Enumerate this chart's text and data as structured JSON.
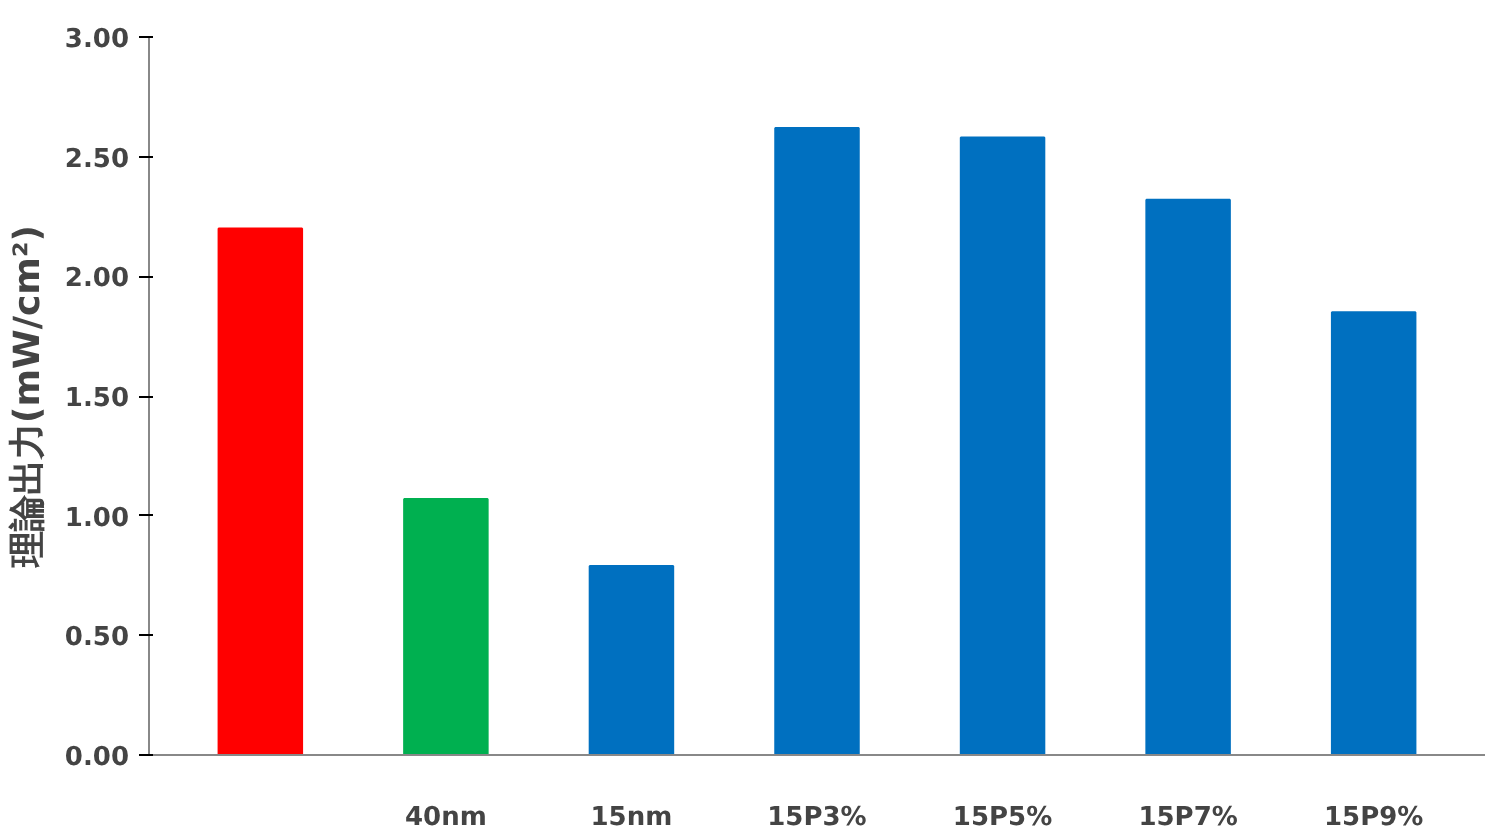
{
  "chart_data": {
    "type": "bar",
    "ylabel": "理論出力(mW/cm²)",
    "categories": [
      null,
      "40nm",
      "15nm",
      "15P3%",
      "15P5%",
      "15P7%",
      "15P9%"
    ],
    "values": [
      2.2,
      1.07,
      0.79,
      2.62,
      2.58,
      2.32,
      1.85
    ],
    "colors": [
      "#ff0000",
      "#00b050",
      "#0070c0",
      "#0070c0",
      "#0070c0",
      "#0070c0",
      "#0070c0"
    ],
    "ylim": [
      0,
      3
    ],
    "yticks": [
      {
        "value": 0,
        "label": "0.00"
      },
      {
        "value": 0.5,
        "label": "0.50"
      },
      {
        "value": 1,
        "label": "1.00"
      },
      {
        "value": 1.5,
        "label": "1.50"
      },
      {
        "value": 2,
        "label": "2.00"
      },
      {
        "value": 2.5,
        "label": "2.50"
      },
      {
        "value": 3,
        "label": "3.00"
      }
    ],
    "grid": false
  }
}
